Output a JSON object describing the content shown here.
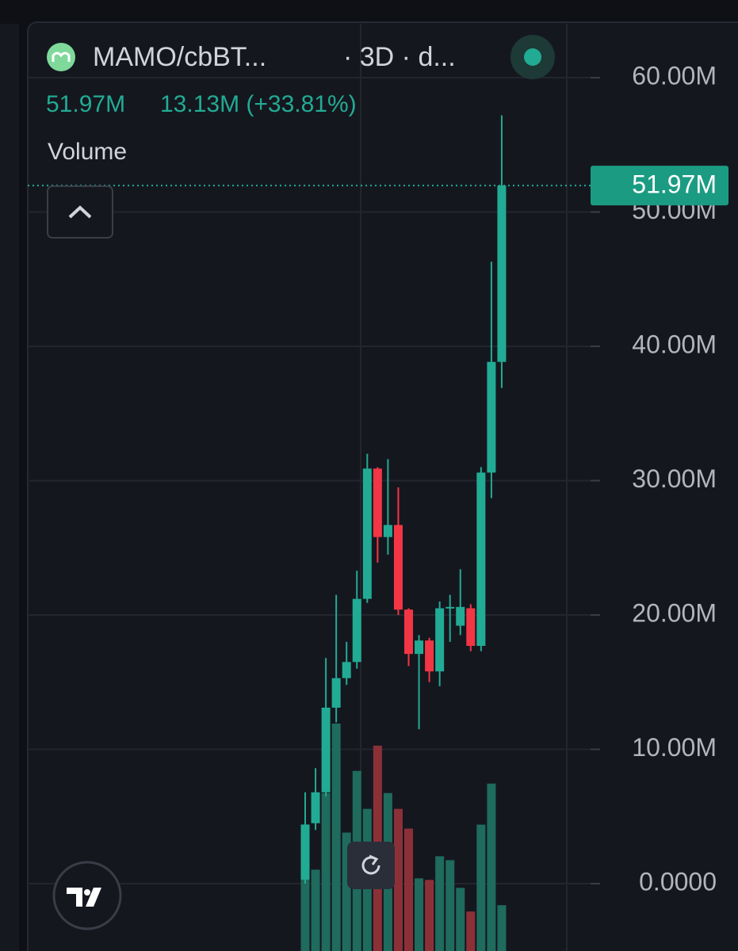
{
  "chart_data": {
    "type": "candlestick",
    "title": "MAMO/cbBT...",
    "subtitle": "· 3D · d...",
    "legend_values": [
      "51.97M",
      "13.13M (+33.81%)"
    ],
    "volume_label": "Volume",
    "open": [
      0.3,
      4.5,
      6.8,
      13.1,
      15.3,
      16.5,
      21.2,
      30.9,
      25.8,
      26.7,
      20.4,
      17.1,
      18.1,
      15.8,
      20.5,
      19.2,
      20.5,
      17.7,
      30.6,
      38.84
    ],
    "high": [
      6.8,
      8.6,
      16.8,
      21.5,
      18.0,
      23.3,
      32.0,
      31.0,
      31.6,
      29.5,
      20.5,
      18.5,
      18.3,
      21.0,
      21.5,
      23.4,
      20.8,
      31.0,
      46.3,
      57.2
    ],
    "low": [
      0.0,
      4.0,
      6.5,
      12.0,
      14.8,
      16.0,
      20.9,
      23.9,
      24.5,
      20.0,
      16.2,
      11.5,
      15.0,
      14.7,
      18.0,
      18.5,
      17.3,
      17.3,
      28.7,
      36.9
    ],
    "close": [
      4.4,
      6.8,
      13.1,
      15.3,
      16.5,
      21.2,
      30.9,
      25.8,
      26.7,
      20.4,
      17.1,
      18.1,
      15.8,
      20.5,
      20.6,
      20.6,
      17.7,
      30.6,
      38.84,
      51.97
    ],
    "volume": [
      10.3,
      10.3,
      20.0,
      28.8,
      15.0,
      22.8,
      18.0,
      26.0,
      20.0,
      18.0,
      15.5,
      9.2,
      9.0,
      12.0,
      11.5,
      8.0,
      5.0,
      16.0,
      21.2,
      5.8
    ],
    "up_color": "#22ab94",
    "down_color": "#f23645",
    "volume_up_color": "#1f6b5e",
    "volume_down_color": "#8c3038",
    "ylim": [
      0,
      60
    ],
    "yticks": [
      {
        "value": 60,
        "label": "60.00M"
      },
      {
        "value": 50,
        "label": "50.00M"
      },
      {
        "value": 40,
        "label": "40.00M"
      },
      {
        "value": 30,
        "label": "30.00M"
      },
      {
        "value": 20,
        "label": "20.00M"
      },
      {
        "value": 10,
        "label": "10.00M"
      },
      {
        "value": 0,
        "label": "0.0000"
      }
    ],
    "grid": true,
    "last_price": {
      "value": 51.97,
      "label": "51.97M"
    }
  }
}
